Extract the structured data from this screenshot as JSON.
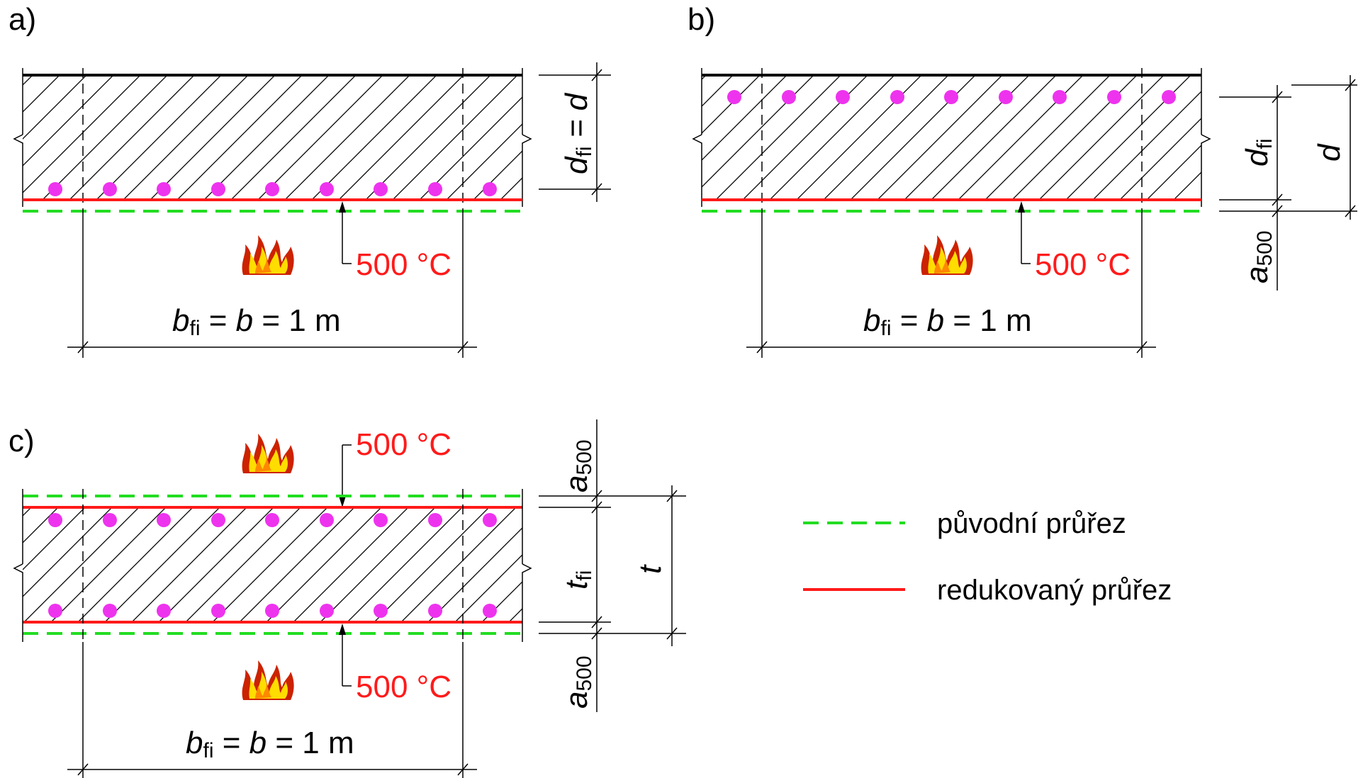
{
  "panels": [
    {
      "label": "a)",
      "temp_label": "500 °C",
      "width_label": {
        "b_sym": "b",
        "b_sub": "fi",
        "eq1": " = ",
        "b2": "b",
        "eq2": " = 1 m"
      },
      "dim_label": {
        "d_sym": "d",
        "d_sub": "fi",
        "rest": " = d"
      }
    },
    {
      "label": "b)",
      "temp_label": "500 °C",
      "width_label": {
        "b_sym": "b",
        "b_sub": "fi",
        "eq1": " = ",
        "b2": "b",
        "eq2": " = 1 m"
      },
      "dim_dfi": {
        "sym": "d",
        "sub": "fi"
      },
      "dim_d": "d",
      "dim_a500": {
        "sym": "a",
        "sub": "500"
      }
    },
    {
      "label": "c)",
      "temp_label_top": "500 °C",
      "temp_label_bottom": "500 °C",
      "width_label": {
        "b_sym": "b",
        "b_sub": "fi",
        "eq1": " = ",
        "b2": "b",
        "eq2": " = 1 m"
      },
      "dim_tfi": {
        "sym": "t",
        "sub": "fi"
      },
      "dim_t": "t",
      "dim_a500_top": {
        "sym": "a",
        "sub": "500"
      },
      "dim_a500_bottom": {
        "sym": "a",
        "sub": "500"
      }
    }
  ],
  "legend": {
    "items": [
      {
        "label": "původní průřez",
        "color": "#22dd22",
        "style": "dashed"
      },
      {
        "label": "redukovaný průřez",
        "color": "#ff1a1a",
        "style": "solid"
      }
    ]
  },
  "colors": {
    "rebar": "#ee33ee",
    "hatch": "#000000",
    "fire_outer": "#cc2200",
    "fire_inner": "#ffdd00"
  }
}
